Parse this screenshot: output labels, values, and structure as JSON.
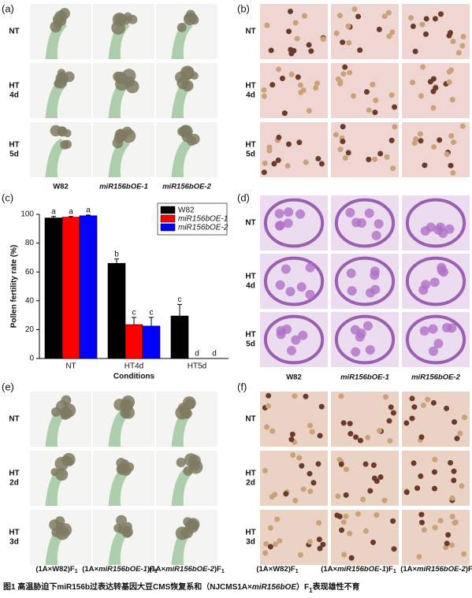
{
  "panel_labels": [
    "(a)",
    "(b)",
    "(c)",
    "(d)",
    "(e)",
    "(f)"
  ],
  "rows_abd": [
    [
      "NT"
    ],
    [
      "HT",
      "4d"
    ],
    [
      "HT",
      "5d"
    ]
  ],
  "rows_ef": [
    [
      "NT"
    ],
    [
      "HT",
      "2d"
    ],
    [
      "HT",
      "3d"
    ]
  ],
  "columns_abd": [
    "W82",
    "miR156bOE-1",
    "miR156bOE-2"
  ],
  "columns_ef": [
    {
      "pre": "(1A×W82)F",
      "sub": "1"
    },
    {
      "pre": "(1A×",
      "italic": "miR156bOE-1",
      "post": ")F",
      "sub": "1"
    },
    {
      "pre": "(1A×",
      "italic": "miR156bOE-2",
      "post": ")F",
      "sub": "1"
    }
  ],
  "caption": {
    "pre": "图1 高温胁迫下miR156b过表达转基因大豆CMS恢复系和（NJCMS1A×",
    "italic": "miR156bOE",
    "post": "）F",
    "sub": "1",
    "tail": "表现雄性不育"
  },
  "chart_data": {
    "type": "bar",
    "x_label": "Conditions",
    "y_label": "Pollen fertility rate (%)",
    "categories": [
      "NT",
      "HT4d",
      "HT5d"
    ],
    "series": [
      {
        "name": "W82",
        "color": "#000000",
        "values": [
          97.5,
          66,
          29.5
        ],
        "errors": [
          1,
          3,
          8
        ],
        "letters": [
          "a",
          "b",
          "c"
        ]
      },
      {
        "name": "miR156bOE-1",
        "color": "#ff0000",
        "values": [
          98,
          23.5,
          0
        ],
        "errors": [
          0.5,
          5,
          0
        ],
        "letters": [
          "a",
          "c",
          "d"
        ]
      },
      {
        "name": "miR156bOE-2",
        "color": "#0000ff",
        "values": [
          99,
          22.5,
          0
        ],
        "errors": [
          0.5,
          6,
          0
        ],
        "letters": [
          "a",
          "c",
          "d"
        ]
      }
    ],
    "ylim": [
      0,
      100
    ],
    "yticks": [
      0,
      20,
      40,
      60,
      80,
      100
    ],
    "legend": "top-right"
  }
}
